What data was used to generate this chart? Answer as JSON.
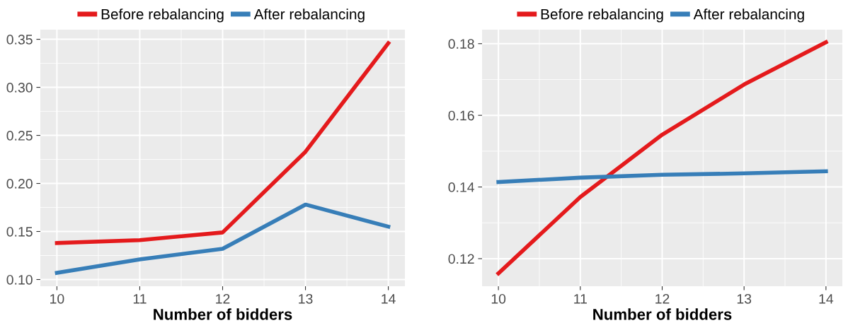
{
  "chart_data": [
    {
      "type": "line",
      "xlabel": "Number of bidders",
      "x": [
        10,
        11,
        12,
        13,
        14
      ],
      "xlim": [
        9.8,
        14.2
      ],
      "xticks": [
        10,
        11,
        12,
        13,
        14
      ],
      "ylim": [
        0.093,
        0.36
      ],
      "yticks": [
        {
          "value": 0.1,
          "label": "0.10"
        },
        {
          "value": 0.15,
          "label": "0.15"
        },
        {
          "value": 0.2,
          "label": "0.20"
        },
        {
          "value": 0.25,
          "label": "0.25"
        },
        {
          "value": 0.3,
          "label": "0.30"
        },
        {
          "value": 0.35,
          "label": "0.35"
        }
      ],
      "grid": true,
      "legend": "top",
      "line_style": "solid",
      "marker": "none",
      "series": [
        {
          "name": "Before rebalancing",
          "color": "#e41a1c",
          "values": [
            0.138,
            0.141,
            0.149,
            0.233,
            0.346
          ]
        },
        {
          "name": "After rebalancing",
          "color": "#377eb8",
          "values": [
            0.107,
            0.121,
            0.132,
            0.178,
            0.155
          ]
        }
      ]
    },
    {
      "type": "line",
      "xlabel": "Number of bidders",
      "x": [
        10,
        11,
        12,
        13,
        14
      ],
      "xlim": [
        9.8,
        14.2
      ],
      "xticks": [
        10,
        11,
        12,
        13,
        14
      ],
      "ylim": [
        0.1123,
        0.1839
      ],
      "yticks": [
        0.12,
        0.14,
        0.16,
        0.18
      ],
      "grid": true,
      "legend": "top",
      "line_style": "solid",
      "marker": "none",
      "series": [
        {
          "name": "Before rebalancing",
          "color": "#e41a1c",
          "values": [
            0.1159,
            0.1372,
            0.1546,
            0.1686,
            0.1804
          ]
        },
        {
          "name": "After rebalancing",
          "color": "#377eb8",
          "values": [
            0.1414,
            0.1426,
            0.1434,
            0.1438,
            0.1444
          ]
        }
      ]
    }
  ]
}
